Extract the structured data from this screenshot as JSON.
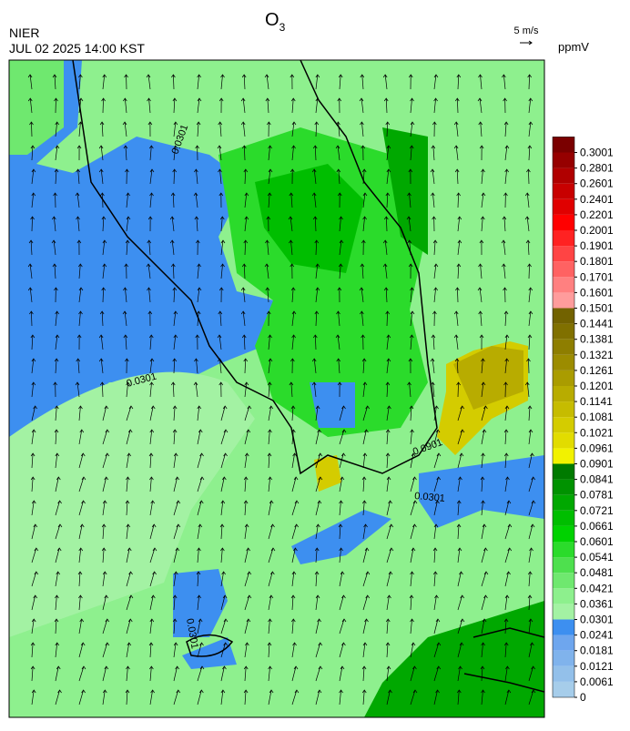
{
  "header": {
    "agency": "NIER",
    "datetime": "JUL 02 2025 14:00 KST",
    "title": {
      "main": "O",
      "subscript": "3"
    },
    "wind_scale": "5 m/s"
  },
  "colorbar": {
    "unit": "ppmV",
    "levels": [
      0,
      0.0061,
      0.0121,
      0.0181,
      0.0241,
      0.0301,
      0.0361,
      0.0421,
      0.0481,
      0.0541,
      0.0601,
      0.0661,
      0.0721,
      0.0781,
      0.0841,
      0.0901,
      0.0961,
      0.1021,
      0.1081,
      0.1141,
      0.1201,
      0.1261,
      0.1321,
      0.1381,
      0.1441,
      0.1501,
      0.1601,
      0.1701,
      0.1801,
      0.1901,
      0.2001,
      0.2201,
      0.2401,
      0.2601,
      0.2801,
      0.3001
    ],
    "colors": [
      "#a6cdea",
      "#93c0ea",
      "#80b3ec",
      "#6ea6ee",
      "#3d8ff0",
      "#a3f2a3",
      "#8df08d",
      "#6fe86f",
      "#4ee04e",
      "#2bdb2b",
      "#00d200",
      "#00be00",
      "#00a800",
      "#009200",
      "#007a00",
      "#f2f200",
      "#e2dc00",
      "#d4cc00",
      "#c6bc00",
      "#b8ac00",
      "#aa9c00",
      "#9c8c00",
      "#8e7e00",
      "#807000",
      "#726200",
      "#ff9c9c",
      "#ff8080",
      "#ff6262",
      "#ff4444",
      "#ff2222",
      "#ff0000",
      "#e00000",
      "#c80000",
      "#b00000",
      "#960000",
      "#7a0000"
    ]
  },
  "contour_labels": [
    "0.0301",
    "0.0301",
    "0.0301",
    "0.0901",
    "0.0301"
  ]
}
